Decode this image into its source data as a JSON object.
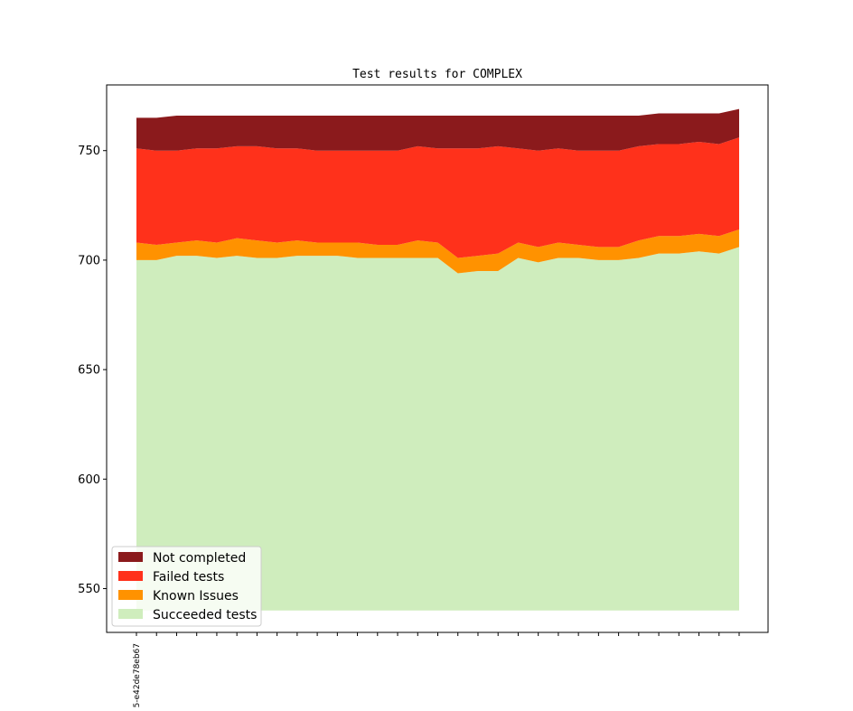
{
  "chart_data": {
    "type": "area",
    "stacked": true,
    "title": "Test results for COMPLEX",
    "xlabel": "",
    "ylabel": "",
    "ylim": [
      530,
      780
    ],
    "yticks": [
      550,
      600,
      650,
      700,
      750
    ],
    "baseline": 540,
    "x_ticks_count": 31,
    "x_visible_label": "5-e42de78eb67",
    "legend_position": "lower-left",
    "grid": false,
    "series": [
      {
        "name": "Succeeded tests",
        "color": "#cfedbd",
        "values": [
          700,
          700,
          702,
          702,
          701,
          702,
          701,
          701,
          702,
          702,
          702,
          701,
          701,
          701,
          701,
          701,
          694,
          695,
          695,
          701,
          699,
          701,
          701,
          700,
          700,
          701,
          703,
          703,
          704,
          703,
          706
        ]
      },
      {
        "name": "Known Issues",
        "color": "#ff9200",
        "values": [
          708,
          707,
          708,
          709,
          708,
          710,
          709,
          708,
          709,
          708,
          708,
          708,
          707,
          707,
          709,
          708,
          701,
          702,
          703,
          708,
          706,
          708,
          707,
          706,
          706,
          709,
          711,
          711,
          712,
          711,
          714
        ]
      },
      {
        "name": "Failed tests",
        "color": "#ff311b",
        "values": [
          751,
          750,
          750,
          751,
          751,
          752,
          752,
          751,
          751,
          750,
          750,
          750,
          750,
          750,
          752,
          751,
          751,
          751,
          752,
          751,
          750,
          751,
          750,
          750,
          750,
          752,
          753,
          753,
          754,
          753,
          756
        ]
      },
      {
        "name": "Not completed",
        "color": "#8b1a1c",
        "values": [
          765,
          765,
          766,
          766,
          766,
          766,
          766,
          766,
          766,
          766,
          766,
          766,
          766,
          766,
          766,
          766,
          766,
          766,
          766,
          766,
          766,
          766,
          766,
          766,
          766,
          766,
          767,
          767,
          767,
          767,
          769
        ]
      }
    ],
    "legend": [
      "Not completed",
      "Failed tests",
      "Known Issues",
      "Succeeded tests"
    ]
  }
}
